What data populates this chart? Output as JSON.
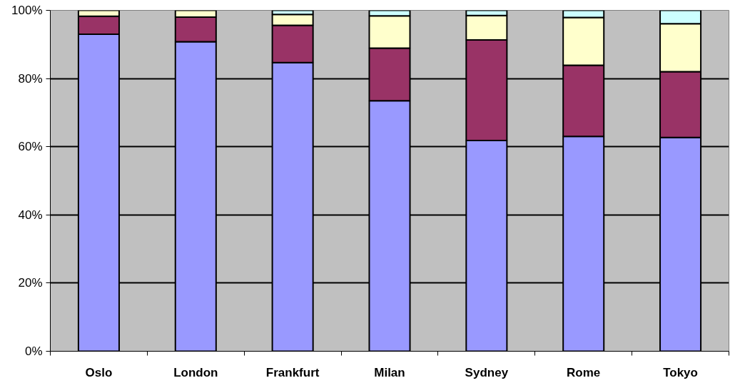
{
  "chart_data": {
    "type": "bar",
    "stacked": true,
    "categories": [
      "Oslo",
      "London",
      "Frankfurt",
      "Milan",
      "Sydney",
      "Rome",
      "Tokyo"
    ],
    "series": [
      {
        "color": "#9999ff",
        "values": [
          93.0,
          90.8,
          84.7,
          73.5,
          61.8,
          63.0,
          62.7
        ]
      },
      {
        "color": "#993366",
        "values": [
          5.3,
          7.2,
          10.9,
          15.4,
          29.5,
          20.9,
          19.3
        ]
      },
      {
        "color": "#ffffcc",
        "values": [
          1.7,
          2.0,
          3.2,
          9.5,
          7.2,
          14.0,
          14.1
        ]
      },
      {
        "color": "#ccffff",
        "values": [
          0,
          0,
          1.2,
          1.6,
          1.5,
          2.1,
          3.9
        ]
      }
    ],
    "ylim": [
      0,
      100
    ],
    "yticks": [
      {
        "value": 0,
        "label": "0%"
      },
      {
        "value": 20,
        "label": "20%"
      },
      {
        "value": 40,
        "label": "40%"
      },
      {
        "value": 60,
        "label": "60%"
      },
      {
        "value": 80,
        "label": "80%"
      },
      {
        "value": 100,
        "label": "100%"
      }
    ],
    "grid": "y"
  }
}
